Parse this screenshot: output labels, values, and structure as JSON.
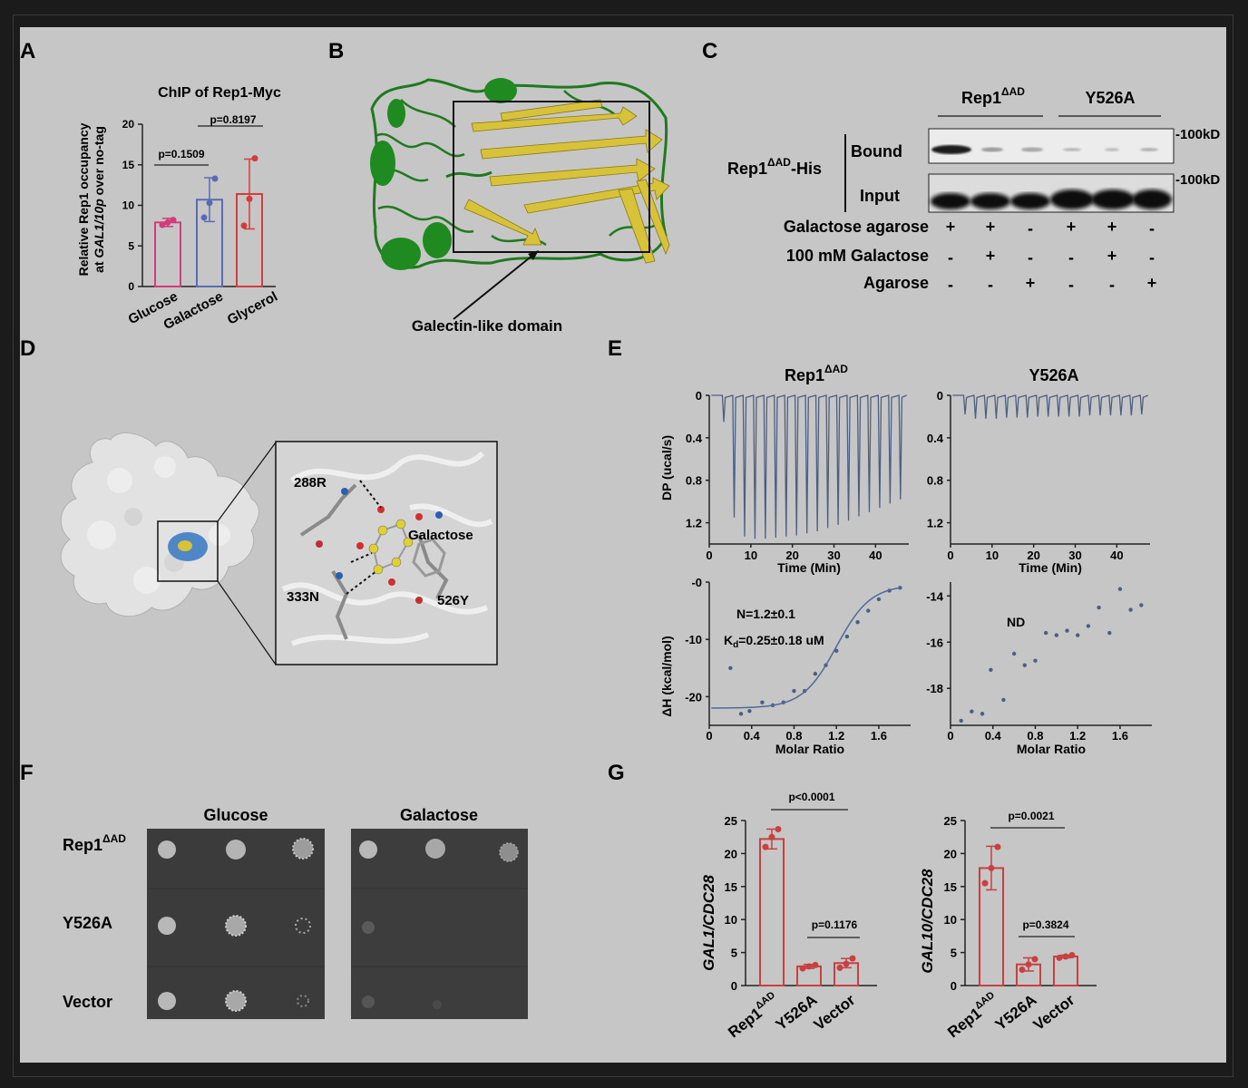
{
  "panels": {
    "A": {
      "letter": "A",
      "title": "ChIP of Rep1-Myc",
      "ylabel_line1": "Relative Rep1 occupancy",
      "ylabel_line2_pre": "at ",
      "ylabel_line2_em": "GAL1/10p",
      "ylabel_line2_post": " over no-tag",
      "yticks": [
        "0",
        "5",
        "10",
        "15",
        "20"
      ],
      "p1": "p=0.1509",
      "p2": "p=0.8197",
      "categories": [
        "Glucose",
        "Galactose",
        "Glycerol"
      ]
    },
    "B": {
      "letter": "B",
      "domain_label": "Galectin-like domain"
    },
    "C": {
      "letter": "C",
      "group1": "Rep1",
      "group1_sup": "ΔAD",
      "group2": "Y526A",
      "row_label_main": "Rep1",
      "row_label_sup": "ΔAD",
      "row_label_suffix": "-His",
      "bound": "Bound",
      "input": "Input",
      "marker1": "100kD",
      "marker2": "100kD",
      "conditions": [
        {
          "label": "Galactose agarose",
          "signs": [
            "+",
            "+",
            "-",
            "+",
            "+",
            "-"
          ]
        },
        {
          "label": "100 mM Galactose",
          "signs": [
            "-",
            "+",
            "-",
            "-",
            "+",
            "-"
          ]
        },
        {
          "label": "Agarose",
          "signs": [
            "-",
            "-",
            "+",
            "-",
            "-",
            "+"
          ]
        }
      ]
    },
    "D": {
      "letter": "D",
      "res1": "288R",
      "res2": "333N",
      "res3": "526Y",
      "ligand": "Galactose"
    },
    "E": {
      "letter": "E",
      "left_title": "Rep1",
      "left_title_sup": "ΔAD",
      "right_title": "Y526A",
      "dp_label": "DP (ucal/s)",
      "dh_label": "ΔH (kcal/mol)",
      "time_label": "Time (Min)",
      "ratio_label": "Molar Ratio",
      "dp_yticks": [
        "0",
        "0.4",
        "0.8",
        "1.2"
      ],
      "time_ticks": [
        "0",
        "10",
        "20",
        "30",
        "40"
      ],
      "ratio_ticks": [
        "0",
        "0.4",
        "0.8",
        "1.2",
        "1.6"
      ],
      "left_dh_ticks": [
        "-0",
        "-10",
        "-20"
      ],
      "right_dh_ticks": [
        "-14",
        "-16",
        "-18"
      ],
      "n_text": "N=1.2±0.1",
      "kd_text": "K",
      "kd_sub": "d",
      "kd_rest": "=0.25±0.18 uM",
      "nd_text": "ND"
    },
    "F": {
      "letter": "F",
      "col1": "Glucose",
      "col2": "Galactose",
      "rows": [
        {
          "label": "Rep1",
          "sup": "ΔAD"
        },
        {
          "label": "Y526A",
          "sup": ""
        },
        {
          "label": "Vector",
          "sup": ""
        }
      ]
    },
    "G": {
      "letter": "G",
      "left_ylabel": "GAL1/CDC28",
      "right_ylabel": "GAL10/CDC28",
      "yticks": [
        "0",
        "5",
        "10",
        "15",
        "20",
        "25"
      ],
      "left_p1": "p<0.0001",
      "left_p2": "p=0.1176",
      "right_p1": "p=0.0021",
      "right_p2": "p=0.3824",
      "cat1": "Rep1",
      "cat1_sup": "ΔAD",
      "cat2": "Y526A",
      "cat3": "Vector"
    }
  },
  "chart_data": [
    {
      "type": "bar",
      "title": "ChIP of Rep1-Myc",
      "categories": [
        "Glucose",
        "Galactose",
        "Glycerol"
      ],
      "values": [
        7.9,
        10.7,
        11.4
      ],
      "errors": [
        0.5,
        2.7,
        4.3
      ],
      "points": [
        [
          7.6,
          7.9,
          8.2
        ],
        [
          8.5,
          10.3,
          13.3
        ],
        [
          7.5,
          10.8,
          15.8
        ]
      ],
      "ylim": [
        0,
        20
      ],
      "colors": [
        "#d23c7a",
        "#5a6bb5",
        "#d23c3c"
      ]
    },
    {
      "type": "line",
      "title": "Rep1ΔAD",
      "xlabel": "Time (Min)",
      "ylabel": "DP (ucal/s)",
      "xlim": [
        0,
        48
      ],
      "ylim": [
        0,
        1.4
      ],
      "peak_times": [
        3.5,
        6,
        8.5,
        11,
        13.5,
        16,
        18.5,
        21,
        23.5,
        26,
        28.5,
        31,
        33.5,
        36,
        38.5,
        41,
        43.5,
        46
      ],
      "peak_heights": [
        0.25,
        1.15,
        1.33,
        1.35,
        1.35,
        1.34,
        1.33,
        1.32,
        1.3,
        1.28,
        1.25,
        1.22,
        1.18,
        1.14,
        1.1,
        1.06,
        1.02,
        0.98
      ]
    },
    {
      "type": "line",
      "title": "Y526A",
      "xlabel": "Time (Min)",
      "ylabel": "DP (ucal/s)",
      "xlim": [
        0,
        48
      ],
      "ylim": [
        0,
        1.4
      ],
      "peak_times": [
        3.5,
        6,
        8.5,
        11,
        13.5,
        16,
        18.5,
        21,
        23.5,
        26,
        28.5,
        31,
        33.5,
        36,
        38.5,
        41,
        43.5,
        46
      ],
      "peak_heights": [
        0.18,
        0.22,
        0.22,
        0.22,
        0.21,
        0.21,
        0.21,
        0.2,
        0.2,
        0.2,
        0.2,
        0.2,
        0.19,
        0.19,
        0.19,
        0.19,
        0.19,
        0.18
      ]
    },
    {
      "type": "scatter",
      "title": "Rep1ΔAD",
      "xlabel": "Molar Ratio",
      "ylabel": "ΔH (kcal/mol)",
      "xlim": [
        0,
        1.9
      ],
      "ylim": [
        -25,
        0
      ],
      "x": [
        0.2,
        0.3,
        0.38,
        0.5,
        0.6,
        0.7,
        0.8,
        0.9,
        1.0,
        1.1,
        1.2,
        1.3,
        1.4,
        1.5,
        1.6,
        1.7,
        1.8
      ],
      "y": [
        -15,
        -23,
        -22.5,
        -21,
        -21.5,
        -21,
        -19,
        -19,
        -16,
        -14.5,
        -12,
        -9.5,
        -7,
        -5,
        -3,
        -1.5,
        -1
      ],
      "fit": true
    },
    {
      "type": "scatter",
      "title": "Y526A",
      "xlabel": "Molar Ratio",
      "ylabel": "ΔH (kcal/mol)",
      "xlim": [
        0,
        1.9
      ],
      "ylim": [
        -19.6,
        -13.4
      ],
      "x": [
        0.1,
        0.2,
        0.3,
        0.38,
        0.5,
        0.6,
        0.7,
        0.8,
        0.9,
        1.0,
        1.1,
        1.2,
        1.3,
        1.4,
        1.5,
        1.6,
        1.7,
        1.8
      ],
      "y": [
        -19.4,
        -19,
        -19.1,
        -17.2,
        -18.5,
        -16.5,
        -17,
        -16.8,
        -15.6,
        -15.7,
        -15.5,
        -15.7,
        -15.3,
        -14.5,
        -15.6,
        -13.7,
        -14.6,
        -14.4
      ]
    },
    {
      "type": "bar",
      "ylabel": "GAL1/CDC28",
      "categories": [
        "Rep1ΔAD",
        "Y526A",
        "Vector"
      ],
      "values": [
        22.2,
        2.9,
        3.4
      ],
      "errors": [
        1.5,
        0.3,
        0.7
      ],
      "points": [
        [
          21,
          22.5,
          23.7
        ],
        [
          2.6,
          2.9,
          3.1
        ],
        [
          2.7,
          3.3,
          4.1
        ]
      ],
      "ylim": [
        0,
        25
      ]
    },
    {
      "type": "bar",
      "ylabel": "GAL10/CDC28",
      "categories": [
        "Rep1ΔAD",
        "Y526A",
        "Vector"
      ],
      "values": [
        17.8,
        3.2,
        4.4
      ],
      "errors": [
        3.3,
        1.0,
        0.2
      ],
      "points": [
        [
          15.5,
          17.8,
          21
        ],
        [
          2.4,
          3.2,
          4
        ],
        [
          4.2,
          4.4,
          4.6
        ]
      ],
      "ylim": [
        0,
        25
      ]
    }
  ]
}
